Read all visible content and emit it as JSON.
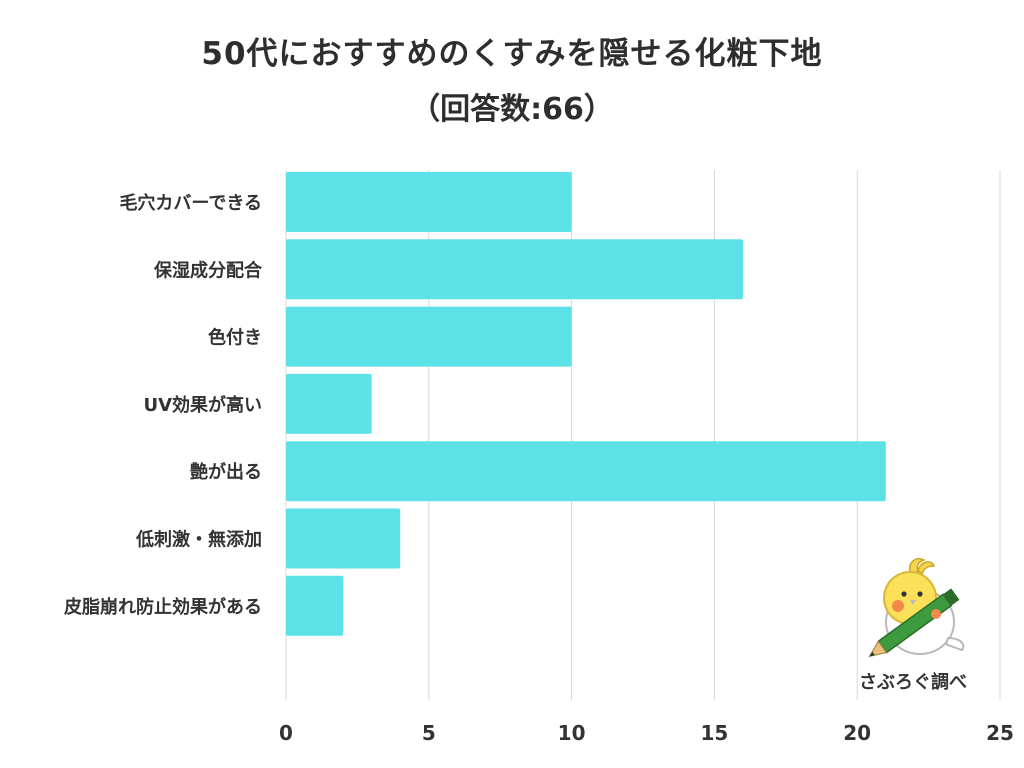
{
  "title": "50代におすすめのくすみを隠せる化粧下地",
  "subtitle": "（回答数:66）",
  "credit": "さぶろぐ調べ",
  "chart_data": {
    "type": "bar",
    "orientation": "horizontal",
    "categories": [
      "毛穴カバーできる",
      "保湿成分配合",
      "色付き",
      "UV効果が高い",
      "艶が出る",
      "低刺激・無添加",
      "皮脂崩れ防止効果がある"
    ],
    "values": [
      10,
      16,
      10,
      3,
      21,
      4,
      2
    ],
    "xlim": [
      0,
      25
    ],
    "xticks": [
      0,
      5,
      10,
      15,
      20,
      25
    ],
    "grid": true,
    "bar_color": "#5ce1e6",
    "grid_color": "#d9d9d9"
  }
}
